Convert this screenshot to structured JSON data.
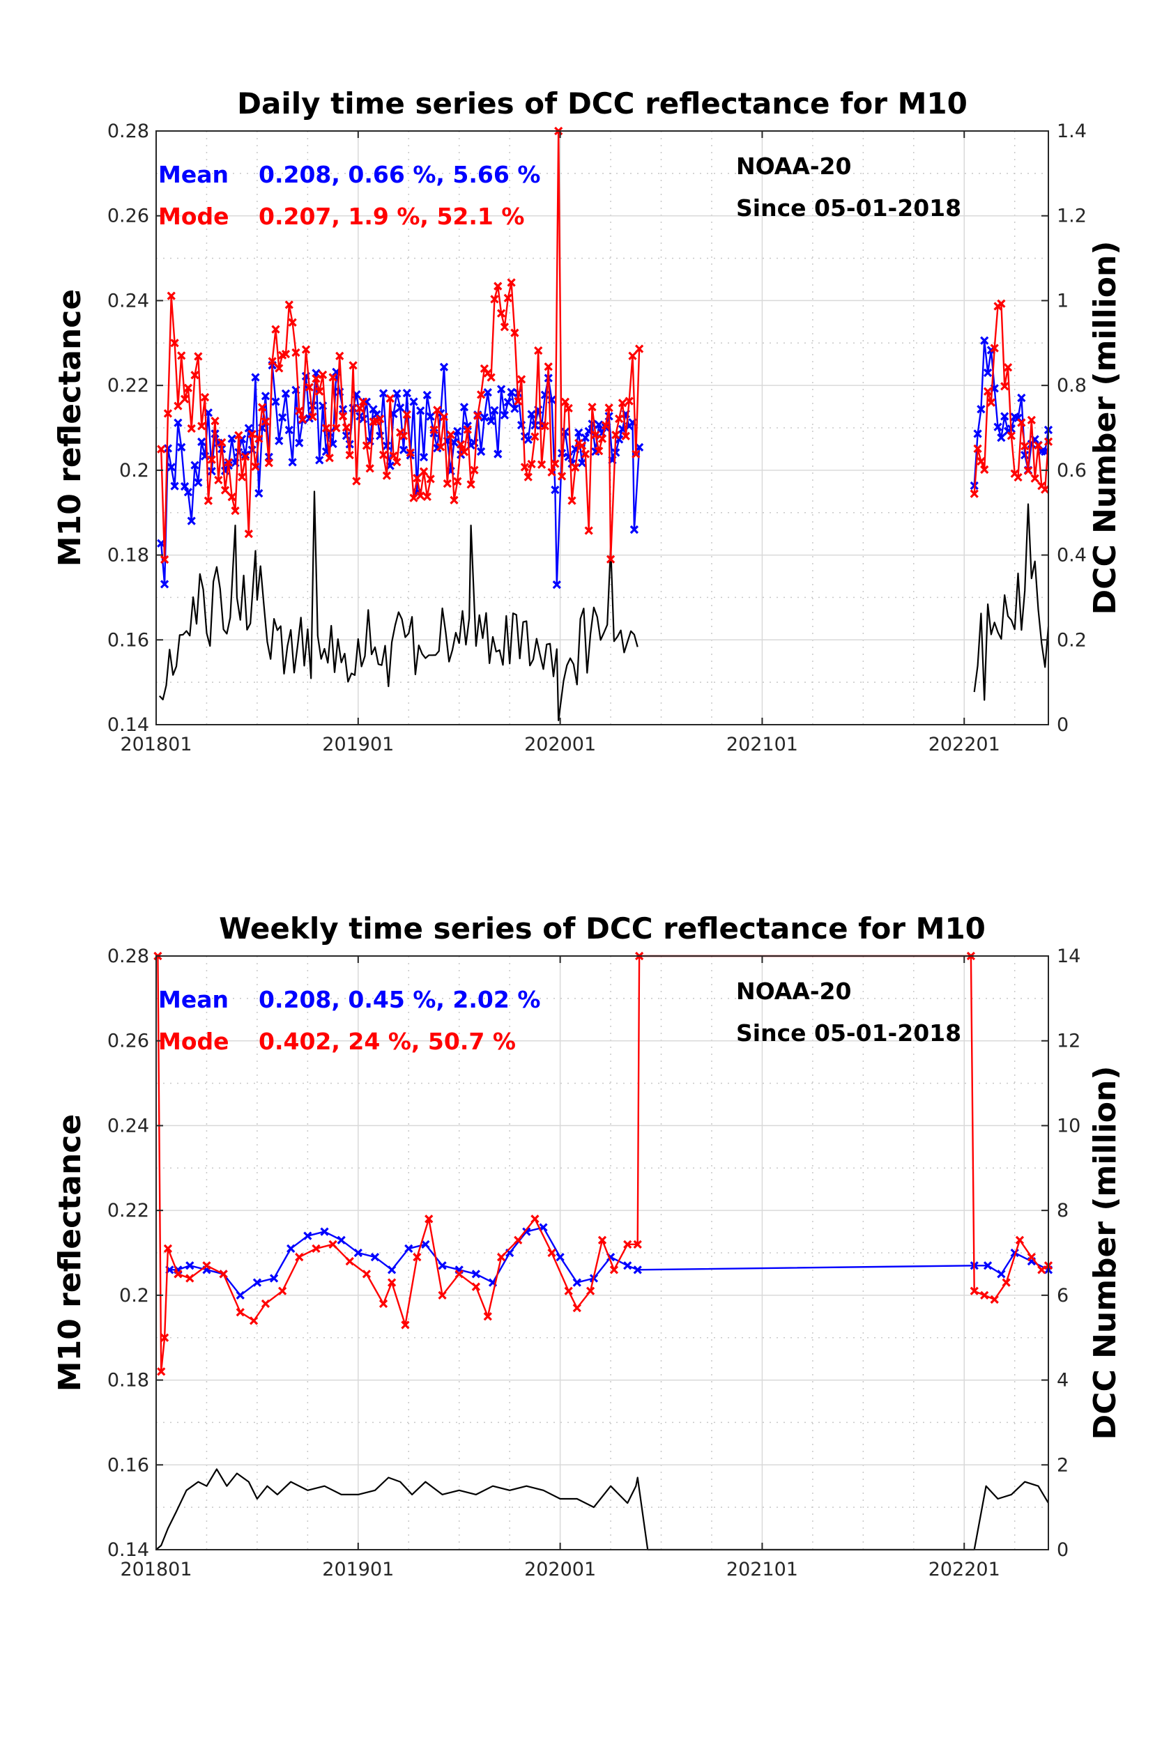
{
  "chart_data": [
    {
      "type": "line",
      "title": "Daily time series of DCC reflectance for M10",
      "ylabel": "M10 reflectance",
      "y2label": "DCC Number (million)",
      "x_ticks": [
        "201801",
        "201901",
        "202001",
        "202101",
        "202201"
      ],
      "x_tick_months": [
        0,
        12,
        24,
        36,
        48
      ],
      "xlim_months": [
        0,
        53
      ],
      "y_ticks": [
        "0.14",
        "0.16",
        "0.18",
        "0.2",
        "0.22",
        "0.24",
        "0.26",
        "0.28"
      ],
      "ylim": [
        0.14,
        0.28
      ],
      "y2_ticks": [
        "0",
        "0.2",
        "0.4",
        "0.6",
        "0.8",
        "1",
        "1.2",
        "1.4"
      ],
      "y2lim": [
        0,
        1.4
      ],
      "grid": true,
      "annotations": {
        "mean_label": "Mean",
        "mean_stats": "0.208, 0.66 %, 5.66 %",
        "mode_label": "Mode",
        "mode_stats": "0.207, 1.9 %, 52.1 %",
        "satellite": "NOAA-20",
        "since": "Since 05-01-2018"
      },
      "series": [
        {
          "name": "Mean",
          "color": "#0000ff",
          "axis": "left",
          "marker": "x",
          "segments": [
            {
              "start": 0.3,
              "end": 28.7,
              "level": 0.206,
              "noise": 0.007,
              "anchors": [
                [
                  0.3,
                  0.193
                ],
                [
                  0.5,
                  0.185
                ],
                [
                  0.7,
                  0.205
                ],
                [
                  3,
                  0.204
                ],
                [
                  7,
                  0.21
                ],
                [
                  9,
                  0.212
                ],
                [
                  12,
                  0.211
                ],
                [
                  16,
                  0.208
                ],
                [
                  20,
                  0.21
                ],
                [
                  22,
                  0.214
                ],
                [
                  24,
                  0.206
                ],
                [
                  26,
                  0.205
                ],
                [
                  28.5,
                  0.207
                ]
              ],
              "spikes": [
                [
                  23.8,
                  0.173
                ],
                [
                  28.4,
                  0.186
                ]
              ]
            },
            {
              "start": 48.6,
              "end": 53,
              "level": 0.207,
              "noise": 0.006,
              "anchors": [
                [
                  48.6,
                  0.201
                ],
                [
                  49.2,
                  0.221
                ],
                [
                  51,
                  0.21
                ],
                [
                  53,
                  0.203
                ]
              ],
              "spikes": []
            }
          ]
        },
        {
          "name": "Mode",
          "color": "#ff0000",
          "axis": "left",
          "marker": "x",
          "segments": [
            {
              "start": 0.3,
              "end": 28.7,
              "level": 0.206,
              "noise": 0.009,
              "anchors": [
                [
                  0.3,
                  0.203
                ],
                [
                  0.5,
                  0.18
                ],
                [
                  0.9,
                  0.231
                ],
                [
                  3,
                  0.205
                ],
                [
                  6,
                  0.2
                ],
                [
                  7.5,
                  0.238
                ],
                [
                  9,
                  0.215
                ],
                [
                  12,
                  0.212
                ],
                [
                  15,
                  0.206
                ],
                [
                  19,
                  0.203
                ],
                [
                  20.5,
                  0.242
                ],
                [
                  22,
                  0.214
                ],
                [
                  24,
                  0.206
                ],
                [
                  26,
                  0.204
                ],
                [
                  28.5,
                  0.218
                ]
              ],
              "spikes": [
                [
                  23.9,
                  0.28
                ],
                [
                  27,
                  0.179
                ],
                [
                  5.5,
                  0.185
                ]
              ]
            },
            {
              "start": 48.6,
              "end": 53,
              "level": 0.206,
              "noise": 0.008,
              "anchors": [
                [
                  48.6,
                  0.2
                ],
                [
                  50,
                  0.228
                ],
                [
                  51,
                  0.21
                ],
                [
                  53,
                  0.203
                ]
              ],
              "spikes": []
            }
          ]
        },
        {
          "name": "DCC Number",
          "color": "#000000",
          "axis": "right",
          "marker": "none",
          "segments": [
            {
              "start": 0.2,
              "end": 28.7,
              "level": 0.21,
              "noise": 0.06,
              "anchors": [
                [
                  0.2,
                  0.05
                ],
                [
                  1,
                  0.12
                ],
                [
                  2,
                  0.25
                ],
                [
                  4,
                  0.28
                ],
                [
                  6,
                  0.3
                ],
                [
                  8,
                  0.16
                ],
                [
                  12,
                  0.18
                ],
                [
                  16,
                  0.2
                ],
                [
                  20,
                  0.22
                ],
                [
                  24,
                  0.18
                ],
                [
                  26,
                  0.22
                ],
                [
                  28.5,
                  0.22
                ]
              ],
              "spikes": [
                [
                  4.7,
                  0.47
                ],
                [
                  5.9,
                  0.41
                ],
                [
                  9.4,
                  0.55
                ],
                [
                  18.7,
                  0.47
                ],
                [
                  23.9,
                  0.01
                ],
                [
                  27,
                  0.42
                ]
              ]
            },
            {
              "start": 48.6,
              "end": 53,
              "level": 0.18,
              "noise": 0.07,
              "anchors": [
                [
                  48.6,
                  0.12
                ],
                [
                  49.5,
                  0.17
                ],
                [
                  51,
                  0.22
                ],
                [
                  52,
                  0.36
                ],
                [
                  53,
                  0.13
                ]
              ],
              "spikes": [
                [
                  51.8,
                  0.52
                ]
              ]
            }
          ]
        }
      ]
    },
    {
      "type": "line",
      "title": "Weekly time series of DCC reflectance for M10",
      "ylabel": "M10 reflectance",
      "y2label": "DCC Number (million)",
      "x_ticks": [
        "201801",
        "201901",
        "202001",
        "202101",
        "202201"
      ],
      "x_tick_months": [
        0,
        12,
        24,
        36,
        48
      ],
      "xlim_months": [
        0,
        53
      ],
      "y_ticks": [
        "0.14",
        "0.16",
        "0.18",
        "0.2",
        "0.22",
        "0.24",
        "0.26",
        "0.28"
      ],
      "ylim": [
        0.14,
        0.28
      ],
      "y2_ticks": [
        "0",
        "2",
        "4",
        "6",
        "8",
        "10",
        "12",
        "14"
      ],
      "y2lim": [
        0,
        14
      ],
      "grid": true,
      "annotations": {
        "mean_label": "Mean",
        "mean_stats": "0.208, 0.45 %, 2.02 %",
        "mode_label": "Mode",
        "mode_stats": "0.402, 24 %, 50.7 %",
        "satellite": "NOAA-20",
        "since": "Since 05-01-2018"
      },
      "series": [
        {
          "name": "Mean",
          "color": "#0000ff",
          "axis": "left",
          "marker": "x",
          "points": [
            [
              0.8,
              0.206
            ],
            [
              1.3,
              0.206
            ],
            [
              2,
              0.207
            ],
            [
              3,
              0.206
            ],
            [
              4,
              0.205
            ],
            [
              5,
              0.2
            ],
            [
              6,
              0.203
            ],
            [
              7,
              0.204
            ],
            [
              8,
              0.211
            ],
            [
              9,
              0.214
            ],
            [
              10,
              0.215
            ],
            [
              11,
              0.213
            ],
            [
              12,
              0.21
            ],
            [
              13,
              0.209
            ],
            [
              14,
              0.206
            ],
            [
              15,
              0.211
            ],
            [
              16,
              0.212
            ],
            [
              17,
              0.207
            ],
            [
              18,
              0.206
            ],
            [
              19,
              0.205
            ],
            [
              20,
              0.203
            ],
            [
              21,
              0.21
            ],
            [
              22,
              0.215
            ],
            [
              23,
              0.216
            ],
            [
              24,
              0.209
            ],
            [
              25,
              0.203
            ],
            [
              26,
              0.204
            ],
            [
              27,
              0.209
            ],
            [
              28,
              0.207
            ],
            [
              28.6,
              0.206
            ],
            [
              48.6,
              0.207
            ],
            [
              49.4,
              0.207
            ],
            [
              50.2,
              0.205
            ],
            [
              51,
              0.21
            ],
            [
              52,
              0.208
            ],
            [
              53,
              0.206
            ]
          ]
        },
        {
          "name": "Mode",
          "color": "#ff0000",
          "axis": "left",
          "marker": "x",
          "points": [
            [
              0.1,
              0.28
            ],
            [
              0.3,
              0.182
            ],
            [
              0.5,
              0.19
            ],
            [
              0.7,
              0.211
            ],
            [
              1.3,
              0.205
            ],
            [
              2,
              0.204
            ],
            [
              3,
              0.207
            ],
            [
              4,
              0.205
            ],
            [
              5,
              0.196
            ],
            [
              5.8,
              0.194
            ],
            [
              6.5,
              0.198
            ],
            [
              7.5,
              0.201
            ],
            [
              8.5,
              0.209
            ],
            [
              9.5,
              0.211
            ],
            [
              10.5,
              0.212
            ],
            [
              11.5,
              0.208
            ],
            [
              12.5,
              0.205
            ],
            [
              13.5,
              0.198
            ],
            [
              14,
              0.203
            ],
            [
              14.8,
              0.193
            ],
            [
              15.5,
              0.209
            ],
            [
              16.2,
              0.218
            ],
            [
              17,
              0.2
            ],
            [
              18,
              0.205
            ],
            [
              19,
              0.202
            ],
            [
              19.7,
              0.195
            ],
            [
              20.5,
              0.209
            ],
            [
              21.5,
              0.213
            ],
            [
              22.5,
              0.218
            ],
            [
              23.5,
              0.21
            ],
            [
              24.5,
              0.201
            ],
            [
              25,
              0.197
            ],
            [
              25.8,
              0.201
            ],
            [
              26.5,
              0.213
            ],
            [
              27.2,
              0.206
            ],
            [
              28,
              0.212
            ],
            [
              28.6,
              0.212
            ],
            [
              28.7,
              0.28
            ],
            [
              48.4,
              0.28
            ],
            [
              48.6,
              0.201
            ],
            [
              49.2,
              0.2
            ],
            [
              49.8,
              0.199
            ],
            [
              50.5,
              0.203
            ],
            [
              51.3,
              0.213
            ],
            [
              52,
              0.209
            ],
            [
              52.6,
              0.206
            ],
            [
              53,
              0.207
            ]
          ]
        },
        {
          "name": "DCC Number",
          "color": "#000000",
          "axis": "right",
          "marker": "none",
          "points": [
            [
              0,
              0
            ],
            [
              0.3,
              0.1
            ],
            [
              0.7,
              0.5
            ],
            [
              1.2,
              0.9
            ],
            [
              1.8,
              1.4
            ],
            [
              2.5,
              1.6
            ],
            [
              3,
              1.5
            ],
            [
              3.6,
              1.9
            ],
            [
              4.2,
              1.5
            ],
            [
              4.8,
              1.8
            ],
            [
              5.5,
              1.6
            ],
            [
              6,
              1.2
            ],
            [
              6.6,
              1.5
            ],
            [
              7.2,
              1.3
            ],
            [
              8,
              1.6
            ],
            [
              9,
              1.4
            ],
            [
              10,
              1.5
            ],
            [
              11,
              1.3
            ],
            [
              12,
              1.3
            ],
            [
              13,
              1.4
            ],
            [
              13.8,
              1.7
            ],
            [
              14.5,
              1.6
            ],
            [
              15.2,
              1.3
            ],
            [
              16,
              1.6
            ],
            [
              17,
              1.3
            ],
            [
              18,
              1.4
            ],
            [
              19,
              1.3
            ],
            [
              20,
              1.5
            ],
            [
              21,
              1.4
            ],
            [
              22,
              1.5
            ],
            [
              23,
              1.4
            ],
            [
              24,
              1.2
            ],
            [
              25,
              1.2
            ],
            [
              26,
              1.0
            ],
            [
              27,
              1.5
            ],
            [
              28,
              1.1
            ],
            [
              28.5,
              1.5
            ],
            [
              28.6,
              1.7
            ],
            [
              29.2,
              0
            ],
            [
              48.6,
              0
            ],
            [
              49.3,
              1.5
            ],
            [
              50,
              1.2
            ],
            [
              50.8,
              1.3
            ],
            [
              51.6,
              1.6
            ],
            [
              52.4,
              1.5
            ],
            [
              53,
              1.1
            ]
          ]
        }
      ]
    }
  ]
}
